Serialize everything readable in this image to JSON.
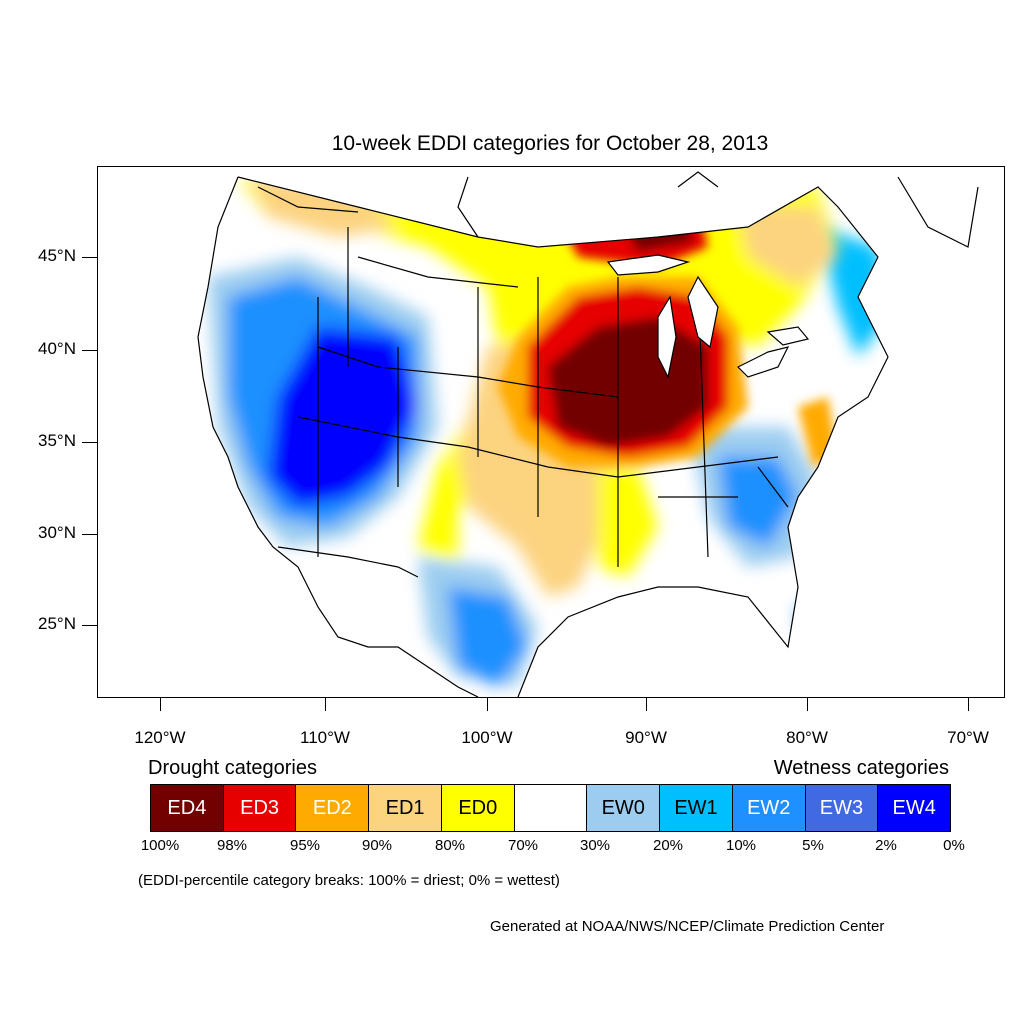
{
  "title": "10-week EDDI categories for October 28, 2013",
  "lat_labels": [
    "45°N",
    "40°N",
    "35°N",
    "30°N",
    "25°N"
  ],
  "lon_labels": [
    "120°W",
    "110°W",
    "100°W",
    "90°W",
    "80°W",
    "70°W"
  ],
  "legend": {
    "drought_title": "Drought categories",
    "wetness_title": "Wetness categories",
    "categories": [
      {
        "label": "ED4",
        "color": "#730000",
        "text_color": "#ffffff"
      },
      {
        "label": "ED3",
        "color": "#e60000",
        "text_color": "#ffffff"
      },
      {
        "label": "ED2",
        "color": "#ffaa00",
        "text_color": "#ffffff"
      },
      {
        "label": "ED1",
        "color": "#fcd37f",
        "text_color": "#000000"
      },
      {
        "label": "ED0",
        "color": "#ffff00",
        "text_color": "#000000"
      },
      {
        "label": "",
        "color": "#ffffff",
        "text_color": "#000000"
      },
      {
        "label": "EW0",
        "color": "#9ccdf0",
        "text_color": "#000000"
      },
      {
        "label": "EW1",
        "color": "#00bfff",
        "text_color": "#000000"
      },
      {
        "label": "EW2",
        "color": "#1e90ff",
        "text_color": "#ffffff"
      },
      {
        "label": "EW3",
        "color": "#4169e1",
        "text_color": "#ffffff"
      },
      {
        "label": "EW4",
        "color": "#0000ff",
        "text_color": "#ffffff"
      }
    ],
    "percentiles": [
      "100%",
      "98%",
      "95%",
      "90%",
      "80%",
      "70%",
      "30%",
      "20%",
      "10%",
      "5%",
      "2%",
      "0%"
    ]
  },
  "note": "(EDDI-percentile category breaks: 100% = driest; 0% = wettest)",
  "credit": "Generated at NOAA/NWS/NCEP/Climate Prediction Center"
}
